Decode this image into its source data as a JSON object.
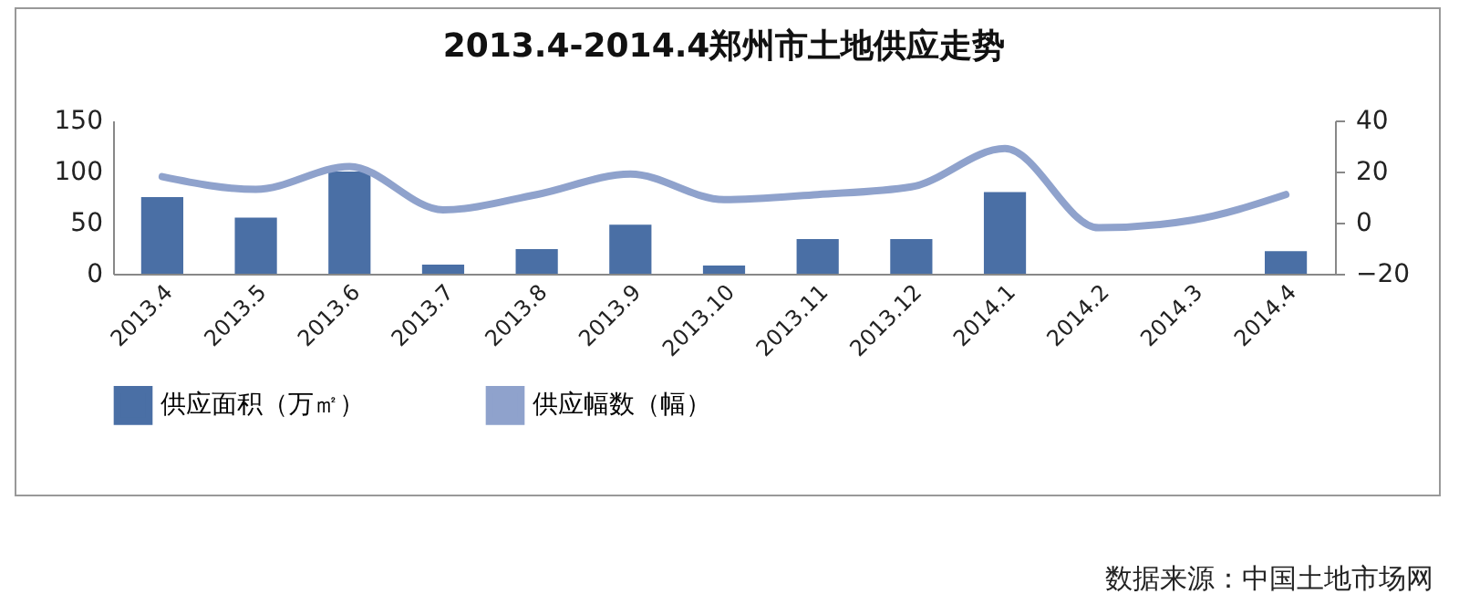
{
  "chart_data": {
    "type": "bar",
    "title": "2013.4-2014.4郑州市土地供应走势",
    "categories": [
      "2013.4",
      "2013.5",
      "2013.6",
      "2013.7",
      "2013.8",
      "2013.9",
      "2013.10",
      "2013.11",
      "2013.12",
      "2014.1",
      "2014.2",
      "2014.3",
      "2014.4"
    ],
    "series": [
      {
        "name": "供应面积（万㎡）",
        "color": "#4a6fa5",
        "values": [
          75,
          55,
          100,
          9,
          24,
          48,
          8,
          34,
          34,
          80,
          0,
          0,
          22
        ]
      },
      {
        "name": "供应幅数（幅）",
        "type": "line",
        "axis": "y2",
        "color": "#8fa2cc",
        "values": [
          18,
          13,
          22,
          5,
          11,
          19,
          9,
          11,
          14,
          29,
          -2,
          1,
          11
        ]
      }
    ],
    "ylim": [
      0,
      150
    ],
    "yticks": [
      0,
      50,
      100,
      150
    ],
    "y2lim": [
      -20,
      40
    ],
    "y2ticks": [
      -20,
      0,
      20,
      40
    ],
    "grid": false,
    "legend": "bottom",
    "marker": "none",
    "line_style": "solid",
    "annotations": [
      "数据来源：中国土地市场网"
    ]
  }
}
